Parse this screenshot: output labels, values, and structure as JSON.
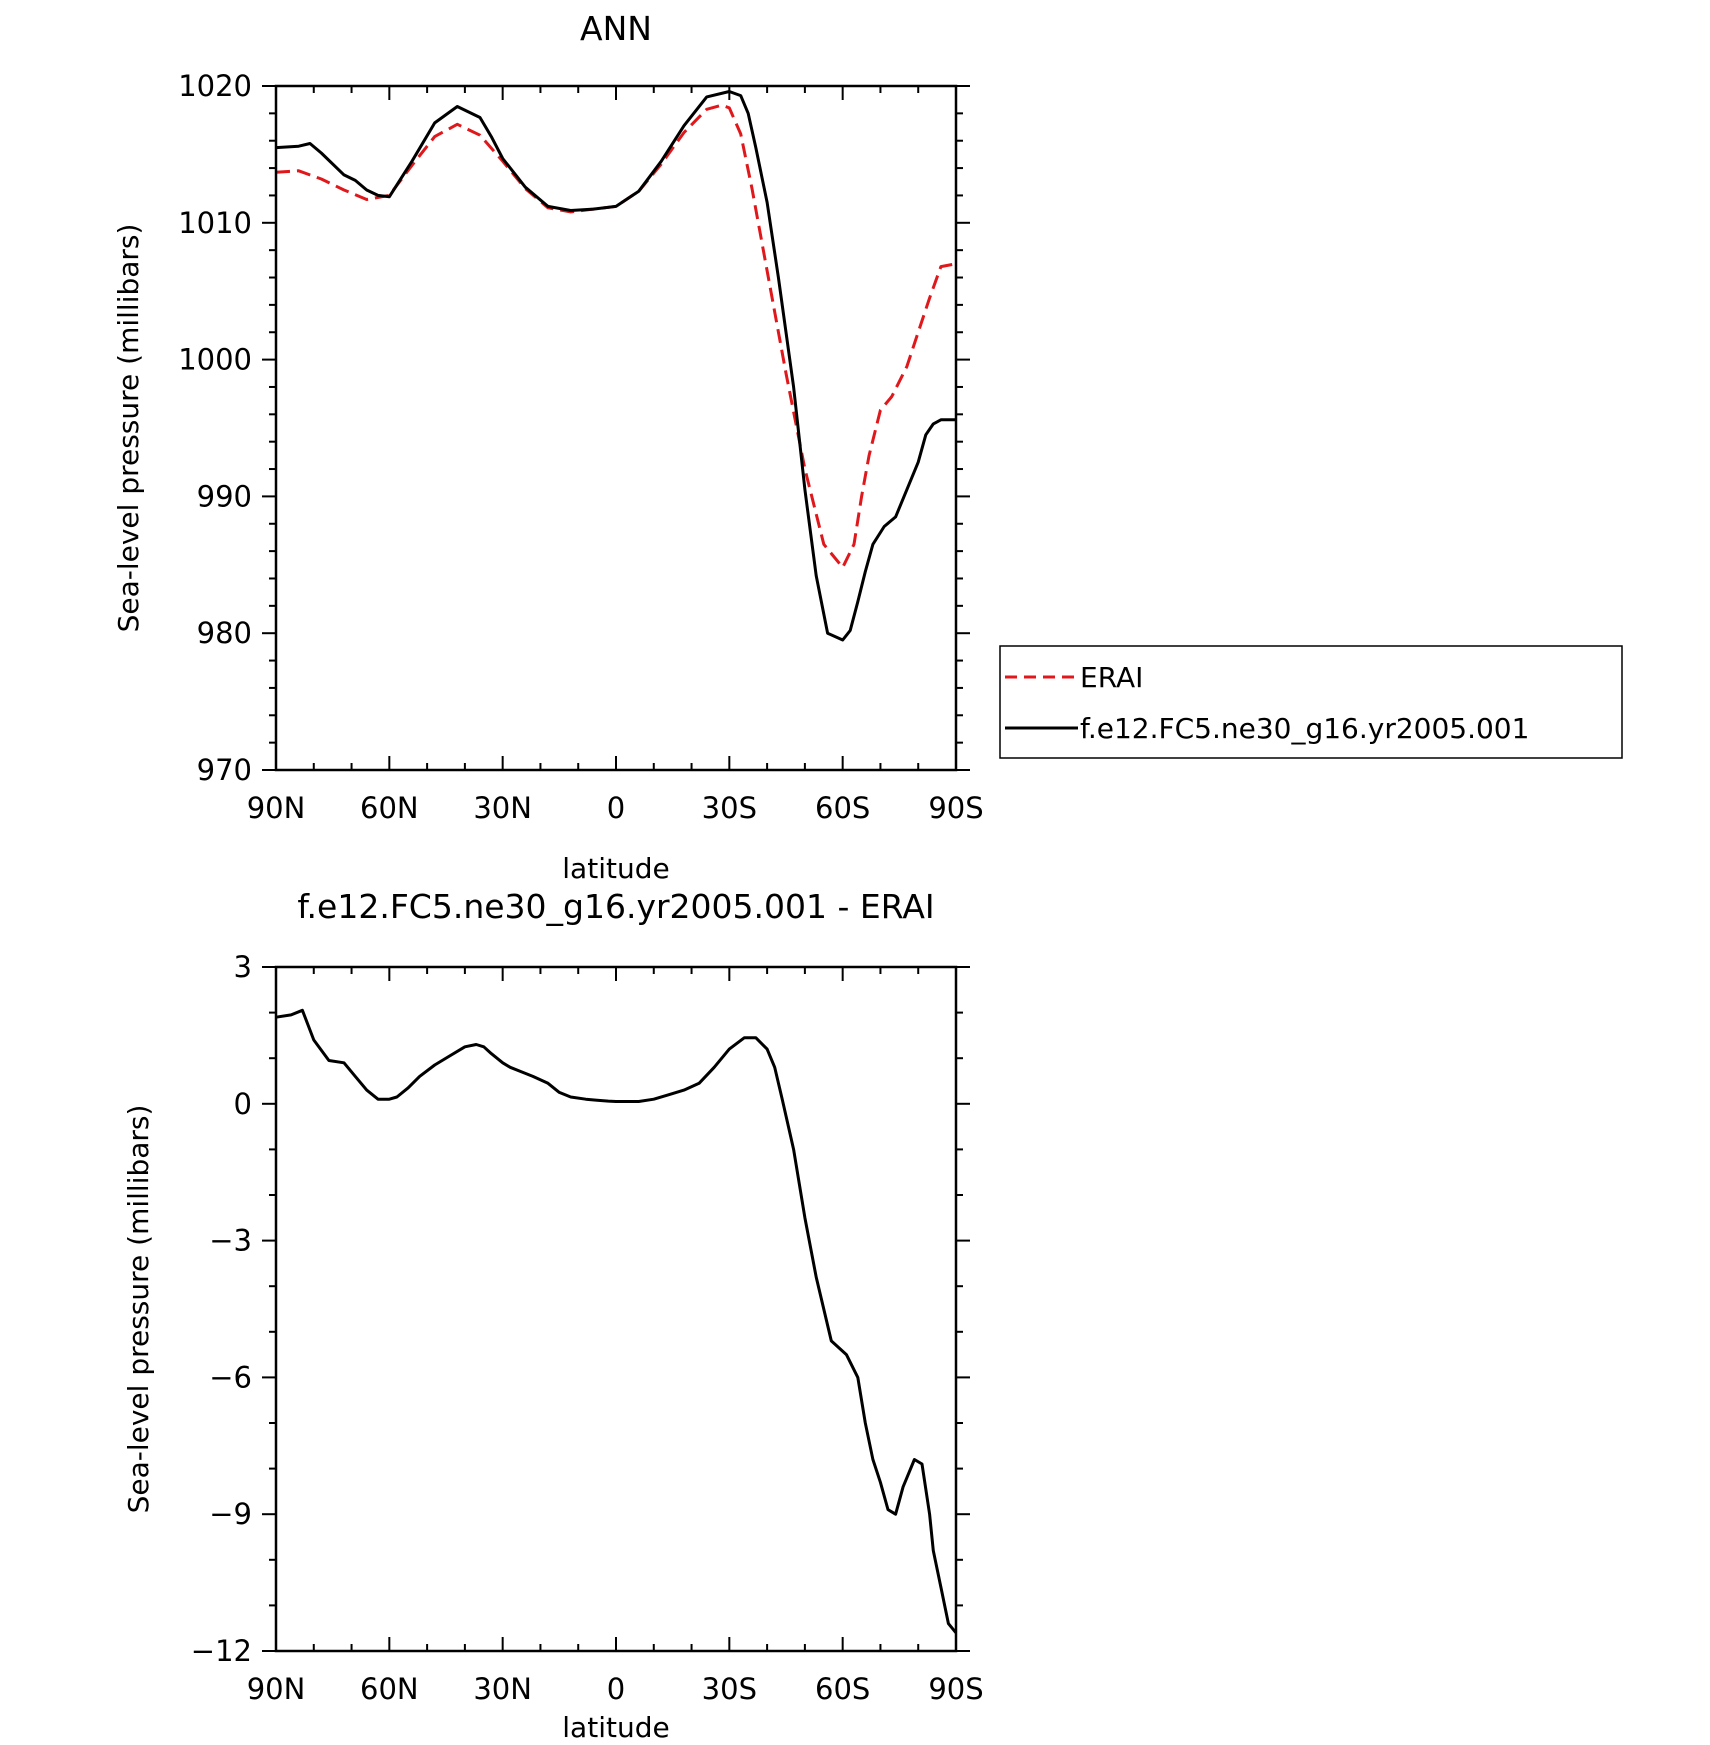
{
  "chart_data": [
    {
      "type": "line",
      "title": "ANN",
      "xlabel": "latitude",
      "ylabel": "Sea-level pressure (millibars)",
      "xlim": [
        90,
        -90
      ],
      "ylim": [
        970,
        1020
      ],
      "x_ticks": [
        90,
        60,
        30,
        0,
        -30,
        -60,
        -90
      ],
      "x_tick_labels": [
        "90N",
        "60N",
        "30N",
        "0",
        "30S",
        "60S",
        "90S"
      ],
      "y_ticks": [
        970,
        980,
        990,
        1000,
        1010,
        1020
      ],
      "y_tick_labels": [
        "970",
        "980",
        "990",
        "1000",
        "1010",
        "1020"
      ],
      "legend": {
        "placement": "right",
        "entries": [
          "ERAI",
          "f.e12.FC5.ne30_g16.yr2005.001"
        ]
      },
      "series": [
        {
          "name": "ERAI",
          "color": "#e0181b",
          "dash": "dashed",
          "x": [
            90,
            84,
            78,
            72,
            66,
            60,
            54,
            48,
            42,
            36,
            30,
            24,
            18,
            12,
            6,
            0,
            -6,
            -12,
            -18,
            -24,
            -28,
            -30,
            -33,
            -36,
            -40,
            -45,
            -50,
            -55,
            -60,
            -63,
            -65,
            -67,
            -70,
            -73,
            -77,
            -80,
            -83,
            -86,
            -90
          ],
          "y": [
            1013.7,
            1013.8,
            1013.2,
            1012.4,
            1011.7,
            1012.0,
            1014.2,
            1016.3,
            1017.2,
            1016.4,
            1014.5,
            1012.5,
            1011.1,
            1010.8,
            1011.0,
            1011.2,
            1012.3,
            1014.3,
            1016.6,
            1018.3,
            1018.6,
            1018.4,
            1016.5,
            1012.5,
            1006.5,
            999.0,
            992.0,
            986.5,
            984.8,
            986.5,
            990.0,
            993.0,
            996.3,
            997.3,
            999.5,
            1002.0,
            1004.5,
            1006.8,
            1007.0
          ]
        },
        {
          "name": "f.e12.FC5.ne30_g16.yr2005.001",
          "color": "#000000",
          "dash": "solid",
          "x": [
            90,
            84,
            81,
            78,
            72,
            69,
            66,
            63,
            60,
            54,
            48,
            42,
            36,
            33,
            30,
            24,
            18,
            12,
            6,
            0,
            -6,
            -12,
            -18,
            -24,
            -30,
            -33,
            -35,
            -37,
            -40,
            -43,
            -47,
            -50,
            -53,
            -56,
            -60,
            -62,
            -64,
            -66,
            -68,
            -71,
            -74,
            -77,
            -80,
            -82,
            -84,
            -86,
            -88,
            -90
          ],
          "y": [
            1015.5,
            1015.6,
            1015.8,
            1015.1,
            1013.5,
            1013.1,
            1012.4,
            1012.0,
            1011.9,
            1014.5,
            1017.3,
            1018.5,
            1017.7,
            1016.3,
            1014.7,
            1012.6,
            1011.2,
            1010.9,
            1011.0,
            1011.2,
            1012.3,
            1014.5,
            1017.1,
            1019.2,
            1019.6,
            1019.3,
            1018.0,
            1015.5,
            1011.5,
            1006.0,
            998.0,
            990.5,
            984.2,
            980.0,
            979.5,
            980.2,
            982.3,
            984.5,
            986.5,
            987.8,
            988.5,
            990.5,
            992.5,
            994.5,
            995.3,
            995.6,
            995.6,
            995.6
          ]
        }
      ]
    },
    {
      "type": "line",
      "title": "f.e12.FC5.ne30_g16.yr2005.001 - ERAI",
      "xlabel": "latitude",
      "ylabel": "Sea-level pressure (millibars)",
      "xlim": [
        90,
        -90
      ],
      "ylim": [
        -12,
        3
      ],
      "x_ticks": [
        90,
        60,
        30,
        0,
        -30,
        -60,
        -90
      ],
      "x_tick_labels": [
        "90N",
        "60N",
        "30N",
        "0",
        "30S",
        "60S",
        "90S"
      ],
      "y_ticks": [
        -12,
        -9,
        -6,
        -3,
        0,
        3
      ],
      "y_tick_labels": [
        "-12",
        "-9",
        "-6",
        "-3",
        "0",
        "3"
      ],
      "series": [
        {
          "color": "#000000",
          "dash": "solid",
          "x": [
            90,
            86,
            83,
            80,
            76,
            72,
            69,
            66,
            63,
            60,
            58,
            55,
            52,
            48,
            44,
            40,
            37,
            35,
            33,
            30,
            28,
            25,
            22,
            18,
            15,
            12,
            8,
            5,
            2,
            0,
            -3,
            -6,
            -10,
            -14,
            -18,
            -22,
            -26,
            -30,
            -34,
            -37,
            -40,
            -42,
            -44,
            -47,
            -50,
            -53,
            -57,
            -61,
            -64,
            -66,
            -68,
            -70,
            -72,
            -74,
            -76,
            -77,
            -79,
            -81,
            -83,
            -84,
            -86,
            -88,
            -90
          ],
          "y": [
            1.9,
            1.95,
            2.05,
            1.4,
            0.95,
            0.9,
            0.6,
            0.3,
            0.1,
            0.1,
            0.15,
            0.35,
            0.6,
            0.85,
            1.05,
            1.25,
            1.3,
            1.25,
            1.1,
            0.9,
            0.8,
            0.7,
            0.6,
            0.45,
            0.25,
            0.15,
            0.1,
            0.08,
            0.06,
            0.05,
            0.05,
            0.05,
            0.1,
            0.2,
            0.3,
            0.45,
            0.8,
            1.2,
            1.45,
            1.45,
            1.2,
            0.8,
            0.1,
            -1.0,
            -2.5,
            -3.8,
            -5.2,
            -5.5,
            -6.0,
            -7.0,
            -7.8,
            -8.3,
            -8.9,
            -9.0,
            -8.4,
            -8.2,
            -7.8,
            -7.9,
            -9.0,
            -9.8,
            -10.6,
            -11.4,
            -11.6
          ]
        }
      ]
    }
  ]
}
